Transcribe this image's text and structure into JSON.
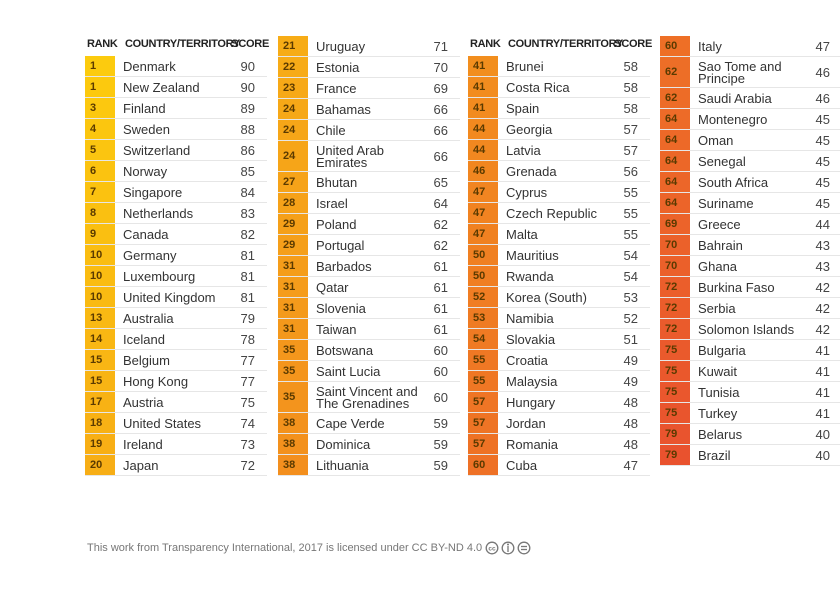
{
  "header": {
    "rank": "RANK",
    "country": "COUNTRY/TERRITORY",
    "score": "SCORE"
  },
  "columns": [
    {
      "rows": [
        [
          1,
          "Denmark",
          90
        ],
        [
          1,
          "New Zealand",
          90
        ],
        [
          3,
          "Finland",
          89
        ],
        [
          4,
          "Sweden",
          88
        ],
        [
          5,
          "Switzerland",
          86
        ],
        [
          6,
          "Norway",
          85
        ],
        [
          7,
          "Singapore",
          84
        ],
        [
          8,
          "Netherlands",
          83
        ],
        [
          9,
          "Canada",
          82
        ],
        [
          10,
          "Germany",
          81
        ],
        [
          10,
          "Luxembourg",
          81
        ],
        [
          10,
          "United Kingdom",
          81
        ],
        [
          13,
          "Australia",
          79
        ],
        [
          14,
          "Iceland",
          78
        ],
        [
          15,
          "Belgium",
          77
        ],
        [
          15,
          "Hong Kong",
          77
        ],
        [
          17,
          "Austria",
          75
        ],
        [
          18,
          "United States",
          74
        ],
        [
          19,
          "Ireland",
          73
        ],
        [
          20,
          "Japan",
          72
        ]
      ]
    },
    {
      "rows": [
        [
          21,
          "Uruguay",
          71
        ],
        [
          22,
          "Estonia",
          70
        ],
        [
          23,
          "France",
          69
        ],
        [
          24,
          "Bahamas",
          66
        ],
        [
          24,
          "Chile",
          66
        ],
        [
          24,
          "United Arab Emirates",
          66
        ],
        [
          27,
          "Bhutan",
          65
        ],
        [
          28,
          "Israel",
          64
        ],
        [
          29,
          "Poland",
          62
        ],
        [
          29,
          "Portugal",
          62
        ],
        [
          31,
          "Barbados",
          61
        ],
        [
          31,
          "Qatar",
          61
        ],
        [
          31,
          "Slovenia",
          61
        ],
        [
          31,
          "Taiwan",
          61
        ],
        [
          35,
          "Botswana",
          60
        ],
        [
          35,
          "Saint Lucia",
          60
        ],
        [
          35,
          "Saint Vincent and The Grenadines",
          60
        ],
        [
          38,
          "Cape Verde",
          59
        ],
        [
          38,
          "Dominica",
          59
        ],
        [
          38,
          "Lithuania",
          59
        ]
      ]
    },
    {
      "rows": [
        [
          41,
          "Brunei",
          58
        ],
        [
          41,
          "Costa Rica",
          58
        ],
        [
          41,
          "Spain",
          58
        ],
        [
          44,
          "Georgia",
          57
        ],
        [
          44,
          "Latvia",
          57
        ],
        [
          46,
          "Grenada",
          56
        ],
        [
          47,
          "Cyprus",
          55
        ],
        [
          47,
          "Czech Republic",
          55
        ],
        [
          47,
          "Malta",
          55
        ],
        [
          50,
          "Mauritius",
          54
        ],
        [
          50,
          "Rwanda",
          54
        ],
        [
          52,
          "Korea (South)",
          53
        ],
        [
          53,
          "Namibia",
          52
        ],
        [
          54,
          "Slovakia",
          51
        ],
        [
          55,
          "Croatia",
          49
        ],
        [
          55,
          "Malaysia",
          49
        ],
        [
          57,
          "Hungary",
          48
        ],
        [
          57,
          "Jordan",
          48
        ],
        [
          57,
          "Romania",
          48
        ],
        [
          60,
          "Cuba",
          47
        ]
      ]
    },
    {
      "rows": [
        [
          60,
          "Italy",
          47
        ],
        [
          62,
          "Sao Tome and Principe",
          46
        ],
        [
          62,
          "Saudi Arabia",
          46
        ],
        [
          64,
          "Montenegro",
          45
        ],
        [
          64,
          "Oman",
          45
        ],
        [
          64,
          "Senegal",
          45
        ],
        [
          64,
          "South Africa",
          45
        ],
        [
          64,
          "Suriname",
          45
        ],
        [
          69,
          "Greece",
          44
        ],
        [
          70,
          "Bahrain",
          43
        ],
        [
          70,
          "Ghana",
          43
        ],
        [
          72,
          "Burkina Faso",
          42
        ],
        [
          72,
          "Serbia",
          42
        ],
        [
          72,
          "Solomon Islands",
          42
        ],
        [
          75,
          "Bulgaria",
          41
        ],
        [
          75,
          "Kuwait",
          41
        ],
        [
          75,
          "Tunisia",
          41
        ],
        [
          75,
          "Turkey",
          41
        ],
        [
          79,
          "Belarus",
          40
        ],
        [
          79,
          "Brazil",
          40
        ]
      ]
    }
  ],
  "footer": "This work from Transparency International, 2017 is licensed under CC BY-ND 4.0"
}
